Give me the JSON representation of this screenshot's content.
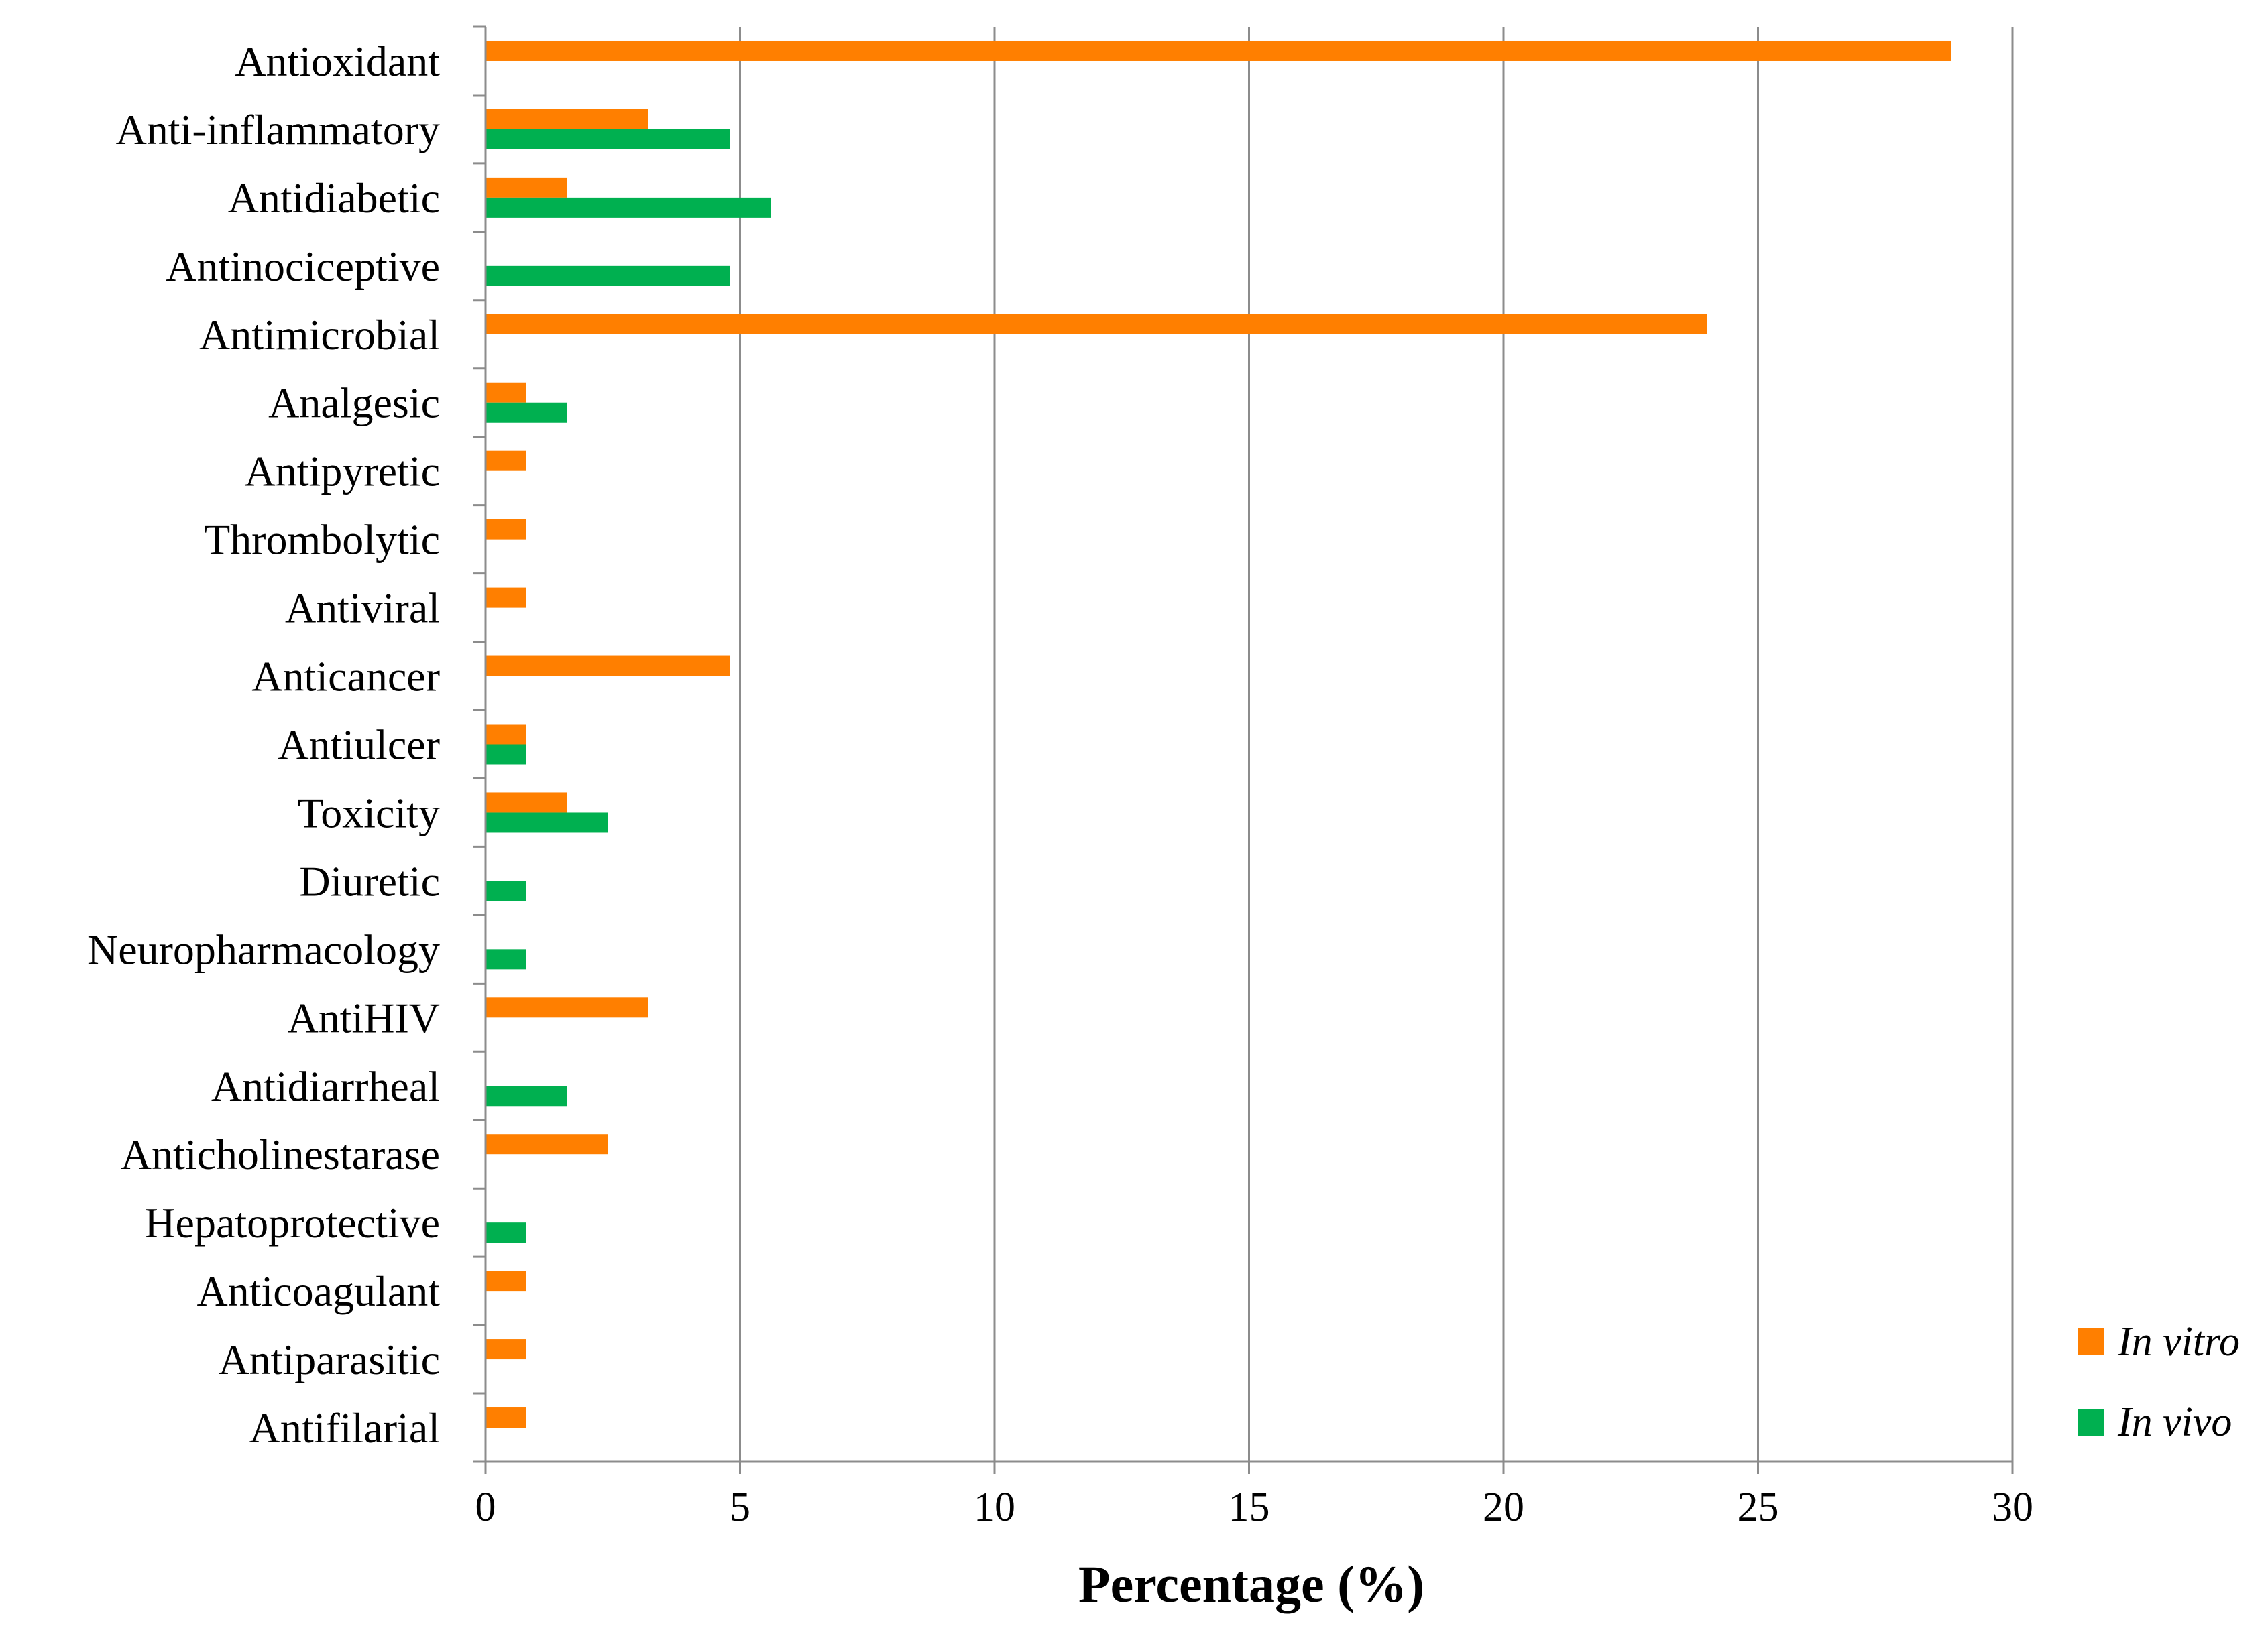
{
  "chart_data": {
    "type": "bar",
    "orientation": "horizontal",
    "title": "",
    "xlabel": "Percentage (%)",
    "ylabel": "",
    "xlim": [
      0,
      30
    ],
    "xticks": [
      0,
      5,
      10,
      15,
      20,
      25,
      30
    ],
    "grid": "vertical",
    "legend_position": "bottom-right",
    "categories": [
      "Antioxidant",
      "Anti-inflammatory",
      "Antidiabetic",
      "Antinociceptive",
      "Antimicrobial",
      "Analgesic",
      "Antipyretic",
      "Thrombolytic",
      "Antiviral",
      "Anticancer",
      "Antiulcer",
      "Toxicity",
      "Diuretic",
      "Neuropharmacology",
      "AntiHIV",
      "Antidiarrheal",
      "Anticholinestarase",
      "Hepatoprotective",
      "Anticoagulant",
      "Antiparasitic",
      "Antifilarial"
    ],
    "series": [
      {
        "name": "In vitro",
        "color": "#FF7F00",
        "values": [
          28.8,
          3.2,
          1.6,
          0,
          24.0,
          0.8,
          0.8,
          0.8,
          0.8,
          4.8,
          0.8,
          1.6,
          0,
          0,
          3.2,
          0,
          2.4,
          0,
          0.8,
          0.8,
          0.8
        ]
      },
      {
        "name": "In vivo",
        "color": "#00B050",
        "values": [
          0,
          4.8,
          5.6,
          4.8,
          0,
          1.6,
          0,
          0,
          0,
          0,
          0.8,
          2.4,
          0.8,
          0.8,
          0,
          1.6,
          0,
          0.8,
          0,
          0,
          0
        ]
      }
    ]
  }
}
